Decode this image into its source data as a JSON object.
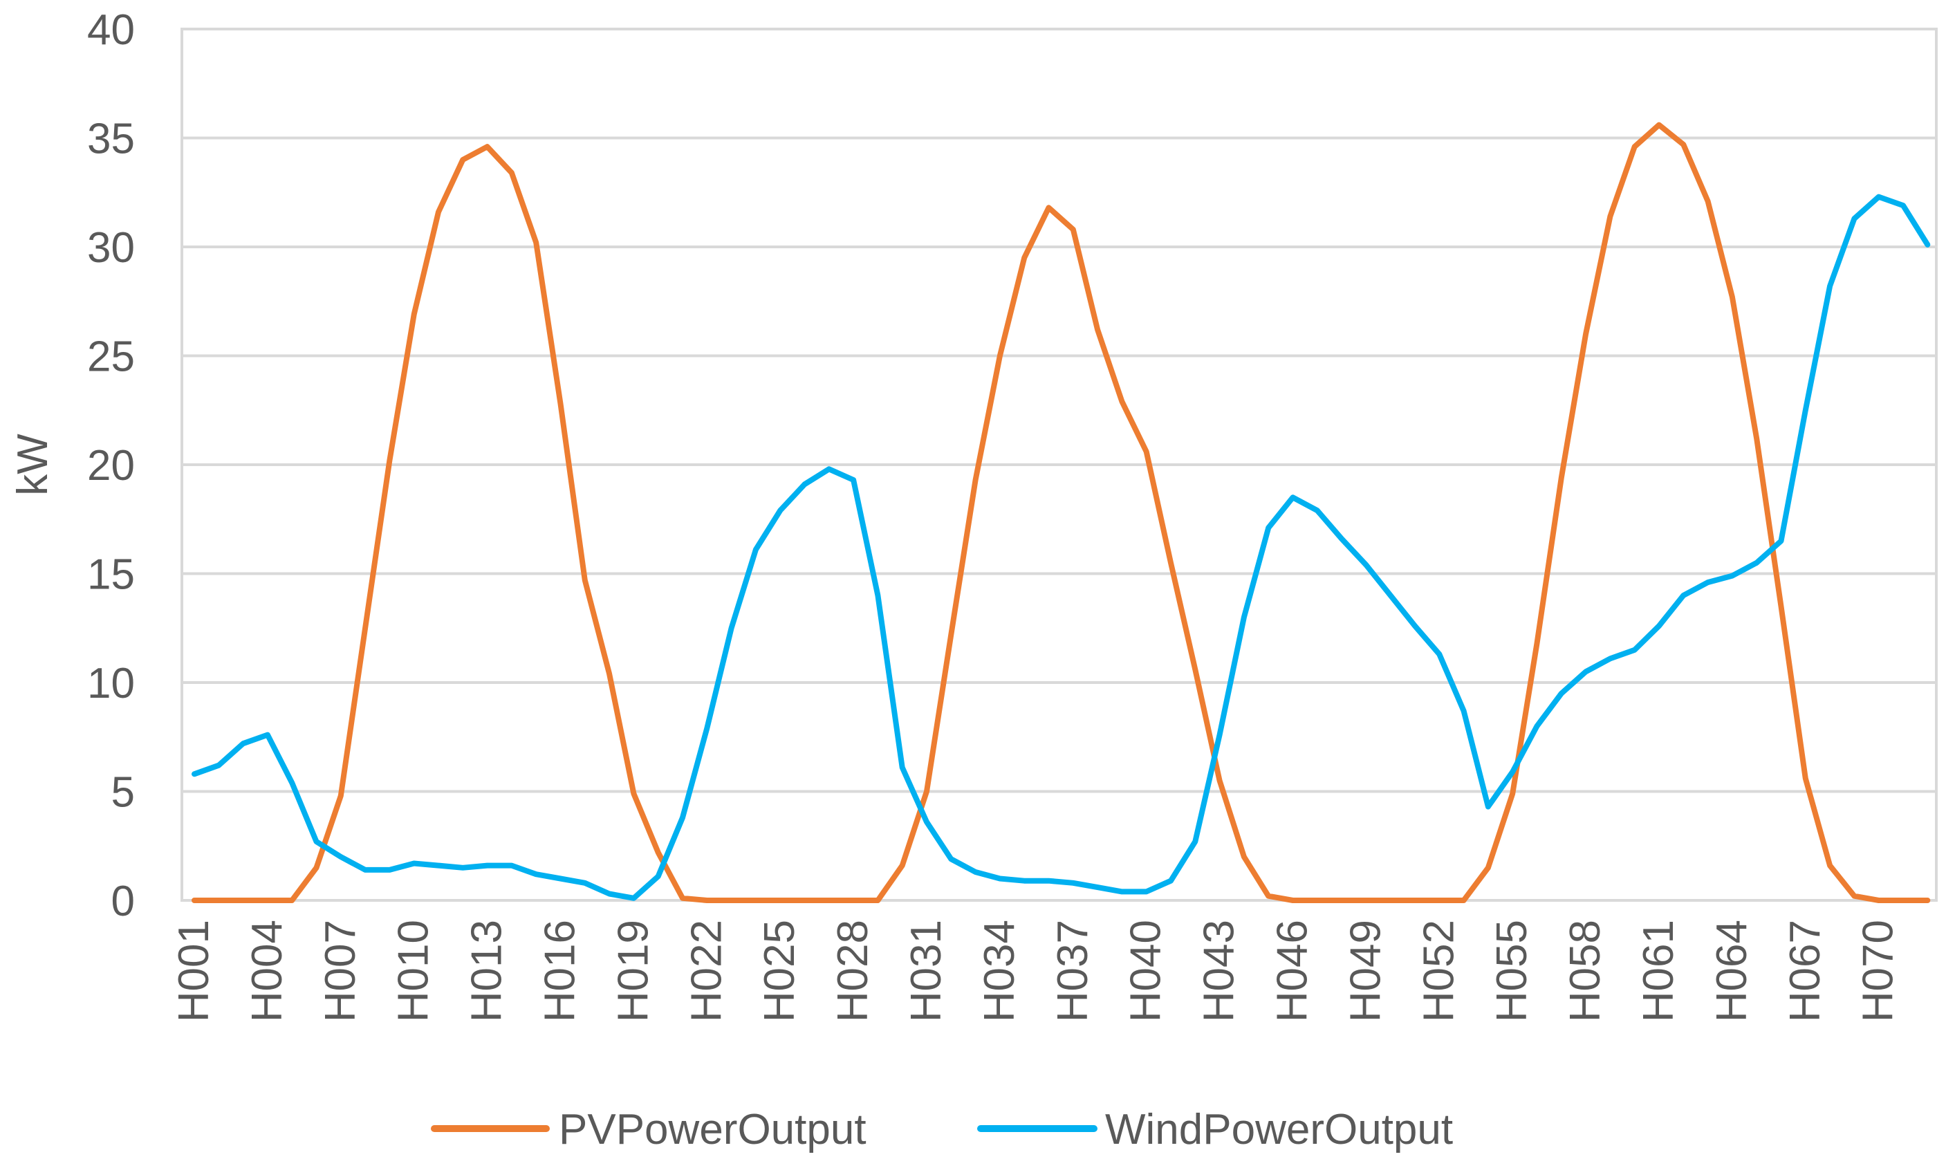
{
  "chart_data": {
    "type": "line",
    "title": "",
    "xlabel": "",
    "ylabel": "kW",
    "ylim": [
      0,
      40
    ],
    "yticks": [
      0,
      5,
      10,
      15,
      20,
      25,
      30,
      35,
      40
    ],
    "grid": true,
    "legend_position": "bottom",
    "x": [
      "H001",
      "H002",
      "H003",
      "H004",
      "H005",
      "H006",
      "H007",
      "H008",
      "H009",
      "H010",
      "H011",
      "H012",
      "H013",
      "H014",
      "H015",
      "H016",
      "H017",
      "H018",
      "H019",
      "H020",
      "H021",
      "H022",
      "H023",
      "H024",
      "H025",
      "H026",
      "H027",
      "H028",
      "H029",
      "H030",
      "H031",
      "H032",
      "H033",
      "H034",
      "H035",
      "H036",
      "H037",
      "H038",
      "H039",
      "H040",
      "H041",
      "H042",
      "H043",
      "H044",
      "H045",
      "H046",
      "H047",
      "H048",
      "H049",
      "H050",
      "H051",
      "H052",
      "H053",
      "H054",
      "H055",
      "H056",
      "H057",
      "H058",
      "H059",
      "H060",
      "H061",
      "H062",
      "H063",
      "H064",
      "H065",
      "H066",
      "H067",
      "H068",
      "H069",
      "H070",
      "H071",
      "H072"
    ],
    "tick_labels": [
      "H001",
      "H004",
      "H007",
      "H010",
      "H013",
      "H016",
      "H019",
      "H022",
      "H025",
      "H028",
      "H031",
      "H034",
      "H037",
      "H040",
      "H043",
      "H046",
      "H049",
      "H052",
      "H055",
      "H058",
      "H061",
      "H064",
      "H067",
      "H070"
    ],
    "series": [
      {
        "name": "PVPowerOutput",
        "color": "#ED7D31",
        "values": [
          0,
          0,
          0,
          0,
          0,
          1.5,
          4.8,
          12.5,
          20.2,
          26.9,
          31.6,
          34.0,
          34.6,
          33.4,
          30.2,
          22.8,
          14.7,
          10.4,
          4.9,
          2.2,
          0.1,
          0,
          0,
          0,
          0,
          0,
          0,
          0,
          0,
          1.6,
          5.0,
          12.2,
          19.3,
          25.0,
          29.5,
          31.8,
          30.8,
          26.2,
          22.9,
          20.6,
          15.5,
          10.6,
          5.5,
          2.0,
          0.2,
          0,
          0,
          0,
          0,
          0,
          0,
          0,
          0,
          1.5,
          4.9,
          11.8,
          19.4,
          26.0,
          31.4,
          34.6,
          35.6,
          34.7,
          32.1,
          27.7,
          21.2,
          13.5,
          5.6,
          1.6,
          0.2,
          0,
          0,
          0
        ]
      },
      {
        "name": "WindPowerOutput",
        "color": "#00B0F0",
        "values": [
          5.8,
          6.2,
          7.2,
          7.6,
          5.4,
          2.7,
          2.0,
          1.4,
          1.4,
          1.7,
          1.6,
          1.5,
          1.6,
          1.6,
          1.2,
          1.0,
          0.8,
          0.3,
          0.1,
          1.1,
          3.8,
          7.9,
          12.5,
          16.1,
          17.9,
          19.1,
          19.8,
          19.3,
          14.0,
          6.1,
          3.6,
          1.9,
          1.3,
          1.0,
          0.9,
          0.9,
          0.8,
          0.6,
          0.4,
          0.4,
          0.9,
          2.7,
          7.6,
          13.0,
          17.1,
          18.5,
          17.9,
          16.6,
          15.4,
          14.0,
          12.6,
          11.3,
          8.7,
          4.3,
          5.9,
          8.0,
          9.5,
          10.5,
          11.1,
          11.5,
          12.6,
          14.0,
          14.6,
          14.9,
          15.5,
          16.5,
          22.5,
          28.2,
          31.3,
          32.3,
          31.9,
          30.1
        ]
      }
    ]
  }
}
